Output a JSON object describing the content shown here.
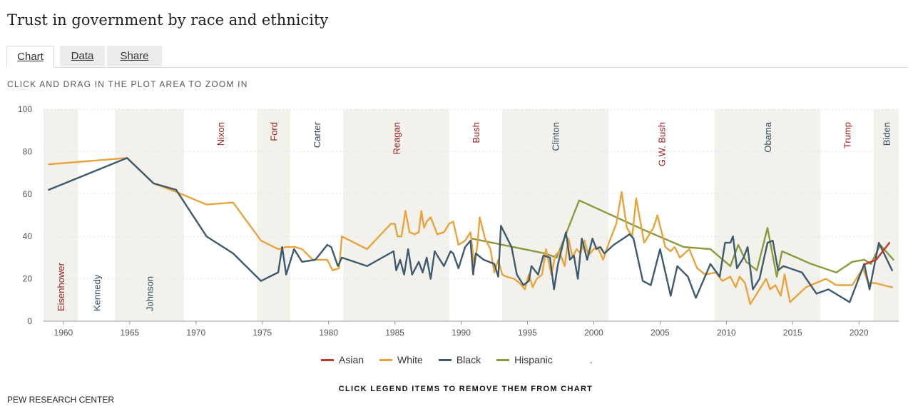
{
  "title": "Trust in government by race and ethnicity",
  "tabs": [
    {
      "label": "Chart"
    },
    {
      "label": "Data"
    },
    {
      "label": "Share"
    }
  ],
  "zoom_hint": "CLICK AND DRAG IN THE PLOT AREA TO ZOOM IN",
  "legend_note": "CLICK LEGEND ITEMS TO REMOVE THEM FROM CHART",
  "legend_extra": ".",
  "source": "PEW RESEARCH CENTER",
  "colors": {
    "Asian": "#c0392b",
    "White": "#e8a33d",
    "Black": "#3d5a6e",
    "Hispanic": "#8a9a3c",
    "band": "#f2f1ec",
    "republican": "#9b1c1c",
    "democrat": "#2e4a60"
  },
  "chart_data": {
    "type": "line",
    "title": "Trust in government by race and ethnicity",
    "xlim": [
      1958.5,
      2023
    ],
    "ylim": [
      0,
      100
    ],
    "x_ticks": [
      1960,
      1965,
      1970,
      1975,
      1980,
      1985,
      1990,
      1995,
      2000,
      2005,
      2010,
      2015,
      2020
    ],
    "y_ticks": [
      0,
      20,
      40,
      60,
      80,
      100
    ],
    "presidents": [
      {
        "name": "Eisenhower",
        "start": 1958.5,
        "end": 1961.1,
        "party": "R",
        "label_pos": "bottom"
      },
      {
        "name": "Kennedy",
        "start": 1961.1,
        "end": 1963.9,
        "party": "D",
        "label_pos": "bottom"
      },
      {
        "name": "Johnson",
        "start": 1963.9,
        "end": 1969.1,
        "party": "D",
        "label_pos": "bottom"
      },
      {
        "name": "Nixon",
        "start": 1969.1,
        "end": 1974.6,
        "party": "R",
        "label_pos": "top"
      },
      {
        "name": "Ford",
        "start": 1974.6,
        "end": 1977.1,
        "party": "R",
        "label_pos": "top"
      },
      {
        "name": "Carter",
        "start": 1977.1,
        "end": 1981.1,
        "party": "D",
        "label_pos": "top"
      },
      {
        "name": "Reagan",
        "start": 1981.1,
        "end": 1989.1,
        "party": "R",
        "label_pos": "top"
      },
      {
        "name": "Bush",
        "start": 1989.1,
        "end": 1993.1,
        "party": "R",
        "label_pos": "top"
      },
      {
        "name": "Clinton",
        "start": 1993.1,
        "end": 2001.1,
        "party": "D",
        "label_pos": "top"
      },
      {
        "name": "G.W. Bush",
        "start": 2001.1,
        "end": 2009.1,
        "party": "R",
        "label_pos": "top"
      },
      {
        "name": "Obama",
        "start": 2009.1,
        "end": 2017.1,
        "party": "D",
        "label_pos": "top"
      },
      {
        "name": "Trump",
        "start": 2017.1,
        "end": 2021.1,
        "party": "R",
        "label_pos": "top"
      },
      {
        "name": "Biden",
        "start": 2021.1,
        "end": 2023,
        "party": "D",
        "label_pos": "top"
      }
    ],
    "series": [
      {
        "name": "Asian",
        "points": [
          [
            2020.5,
            27
          ],
          [
            2021.3,
            29
          ],
          [
            2022.3,
            37
          ]
        ]
      },
      {
        "name": "White",
        "points": [
          [
            1958.9,
            74
          ],
          [
            1964.8,
            77
          ],
          [
            1966.8,
            65
          ],
          [
            1968.5,
            61
          ],
          [
            1970.8,
            55
          ],
          [
            1972.8,
            56
          ],
          [
            1974.9,
            38
          ],
          [
            1976.2,
            34
          ],
          [
            1976.8,
            35
          ],
          [
            1977.5,
            35
          ],
          [
            1978,
            34
          ],
          [
            1978.8,
            29
          ],
          [
            1979.9,
            29
          ],
          [
            1980.3,
            24
          ],
          [
            1980.8,
            25
          ],
          [
            1981,
            40
          ],
          [
            1982.9,
            34
          ],
          [
            1984.7,
            46
          ],
          [
            1985,
            46
          ],
          [
            1985.2,
            40
          ],
          [
            1985.5,
            40
          ],
          [
            1985.8,
            52
          ],
          [
            1986.1,
            42
          ],
          [
            1986.5,
            41
          ],
          [
            1986.8,
            42
          ],
          [
            1987,
            52
          ],
          [
            1987.2,
            44
          ],
          [
            1987.4,
            47
          ],
          [
            1987.7,
            49
          ],
          [
            1988.2,
            41
          ],
          [
            1988.7,
            42
          ],
          [
            1989.1,
            46
          ],
          [
            1989.4,
            47
          ],
          [
            1989.8,
            36
          ],
          [
            1990.3,
            38
          ],
          [
            1990.7,
            42
          ],
          [
            1991,
            26
          ],
          [
            1991.2,
            35
          ],
          [
            1991.4,
            49
          ],
          [
            1991.8,
            39
          ],
          [
            1992.2,
            34
          ],
          [
            1992.5,
            23
          ],
          [
            1992.8,
            29
          ],
          [
            1993.1,
            22
          ],
          [
            1993.4,
            21
          ],
          [
            1994,
            20
          ],
          [
            1994.4,
            18
          ],
          [
            1994.8,
            15
          ],
          [
            1995.1,
            22
          ],
          [
            1995.4,
            16
          ],
          [
            1995.7,
            20
          ],
          [
            1996.1,
            22
          ],
          [
            1996.4,
            34
          ],
          [
            1996.8,
            22
          ],
          [
            1997.1,
            31
          ],
          [
            1997.4,
            33
          ],
          [
            1997.8,
            26
          ],
          [
            1998.1,
            39
          ],
          [
            1998.4,
            30
          ],
          [
            1998.7,
            34
          ],
          [
            1999,
            32
          ],
          [
            1999.3,
            38
          ],
          [
            1999.6,
            31
          ],
          [
            2000,
            34
          ],
          [
            2000.3,
            35
          ],
          [
            2000.7,
            29
          ],
          [
            2001.2,
            38
          ],
          [
            2001.7,
            46
          ],
          [
            2002.1,
            61
          ],
          [
            2002.5,
            44
          ],
          [
            2002.9,
            40
          ],
          [
            2003.2,
            58
          ],
          [
            2003.8,
            37
          ],
          [
            2004.5,
            44
          ],
          [
            2004.8,
            50
          ],
          [
            2005.4,
            35
          ],
          [
            2005.8,
            33
          ],
          [
            2006.1,
            35
          ],
          [
            2006.5,
            30
          ],
          [
            2007.2,
            34
          ],
          [
            2007.8,
            25
          ],
          [
            2008.4,
            22
          ],
          [
            2009.2,
            23
          ],
          [
            2009.7,
            19
          ],
          [
            2010.3,
            21
          ],
          [
            2010.7,
            16
          ],
          [
            2011,
            21
          ],
          [
            2011.4,
            18
          ],
          [
            2011.8,
            8
          ],
          [
            2012.5,
            15
          ],
          [
            2013,
            20
          ],
          [
            2013.3,
            15
          ],
          [
            2013.7,
            17
          ],
          [
            2014.1,
            12
          ],
          [
            2014.4,
            22
          ],
          [
            2014.8,
            9
          ],
          [
            2016,
            16
          ],
          [
            2017.5,
            20
          ],
          [
            2018.3,
            17
          ],
          [
            2019.5,
            17
          ],
          [
            2020.3,
            25
          ],
          [
            2020.7,
            18
          ],
          [
            2021.2,
            18
          ],
          [
            2022.5,
            16
          ]
        ]
      },
      {
        "name": "Black",
        "points": [
          [
            1958.9,
            62
          ],
          [
            1964.8,
            77
          ],
          [
            1966.8,
            65
          ],
          [
            1968.5,
            62
          ],
          [
            1970.8,
            40
          ],
          [
            1972.8,
            32
          ],
          [
            1974.9,
            19
          ],
          [
            1976.2,
            23
          ],
          [
            1976.5,
            35
          ],
          [
            1976.8,
            22
          ],
          [
            1977.4,
            34
          ],
          [
            1978,
            28
          ],
          [
            1979,
            29
          ],
          [
            1979.9,
            36
          ],
          [
            1980.2,
            35
          ],
          [
            1980.7,
            26
          ],
          [
            1981,
            30
          ],
          [
            1982.9,
            26
          ],
          [
            1984.9,
            33
          ],
          [
            1985.1,
            24
          ],
          [
            1985.4,
            29
          ],
          [
            1985.7,
            22
          ],
          [
            1986,
            34
          ],
          [
            1986.3,
            22
          ],
          [
            1986.8,
            28
          ],
          [
            1987.1,
            23
          ],
          [
            1987.4,
            30
          ],
          [
            1987.7,
            20
          ],
          [
            1988,
            33
          ],
          [
            1988.4,
            29
          ],
          [
            1988.7,
            26
          ],
          [
            1989.2,
            33
          ],
          [
            1989.4,
            32
          ],
          [
            1989.8,
            25
          ],
          [
            1990.3,
            35
          ],
          [
            1990.7,
            38
          ],
          [
            1990.9,
            22
          ],
          [
            1991.1,
            32
          ],
          [
            1991.7,
            29
          ],
          [
            1992.5,
            27
          ],
          [
            1992.8,
            21
          ],
          [
            1993,
            45
          ],
          [
            1993.8,
            35
          ],
          [
            1994.2,
            22
          ],
          [
            1994.7,
            17
          ],
          [
            1995.1,
            19
          ],
          [
            1995.3,
            26
          ],
          [
            1995.8,
            22
          ],
          [
            1996.2,
            31
          ],
          [
            1996.7,
            30
          ],
          [
            1997,
            15
          ],
          [
            1997.3,
            27
          ],
          [
            1997.9,
            42
          ],
          [
            1998.2,
            29
          ],
          [
            1998.5,
            31
          ],
          [
            1998.8,
            20
          ],
          [
            1999.1,
            39
          ],
          [
            1999.5,
            29
          ],
          [
            1999.9,
            39
          ],
          [
            2000.2,
            34
          ],
          [
            2000.5,
            35
          ],
          [
            2000.8,
            32
          ],
          [
            2001.5,
            36
          ],
          [
            2002.7,
            41
          ],
          [
            2003,
            39
          ],
          [
            2003.7,
            19
          ],
          [
            2004.3,
            17
          ],
          [
            2005,
            34
          ],
          [
            2005.8,
            12
          ],
          [
            2006.3,
            26
          ],
          [
            2007.1,
            21
          ],
          [
            2007.7,
            11
          ],
          [
            2008.8,
            27
          ],
          [
            2009.5,
            21
          ],
          [
            2009.9,
            37
          ],
          [
            2010.3,
            37
          ],
          [
            2010.5,
            40
          ],
          [
            2010.8,
            25
          ],
          [
            2011.3,
            30
          ],
          [
            2011.6,
            35
          ],
          [
            2012,
            15
          ],
          [
            2012.5,
            20
          ],
          [
            2013.1,
            37
          ],
          [
            2013.5,
            38
          ],
          [
            2013.9,
            24
          ],
          [
            2014.3,
            26
          ],
          [
            2015.7,
            23
          ],
          [
            2016.8,
            13
          ],
          [
            2017.7,
            15
          ],
          [
            2019.3,
            9
          ],
          [
            2020.4,
            27
          ],
          [
            2020.8,
            15
          ],
          [
            2021.5,
            37
          ],
          [
            2022.5,
            24
          ]
        ]
      },
      {
        "name": "Hispanic",
        "points": [
          [
            1990.8,
            39
          ],
          [
            1996.3,
            32
          ],
          [
            1997.2,
            30
          ],
          [
            1998.9,
            57
          ],
          [
            2003.8,
            43
          ],
          [
            2006.8,
            35
          ],
          [
            2008.8,
            34
          ],
          [
            2010.3,
            26
          ],
          [
            2010.9,
            36
          ],
          [
            2011.5,
            28
          ],
          [
            2012.3,
            24
          ],
          [
            2013.1,
            44
          ],
          [
            2013.8,
            21
          ],
          [
            2014.2,
            33
          ],
          [
            2015.3,
            30
          ],
          [
            2016.4,
            27
          ],
          [
            2018.3,
            23
          ],
          [
            2019.5,
            28
          ],
          [
            2020.4,
            29
          ],
          [
            2020.9,
            27
          ],
          [
            2021.6,
            36
          ],
          [
            2022.6,
            29
          ]
        ]
      }
    ]
  }
}
